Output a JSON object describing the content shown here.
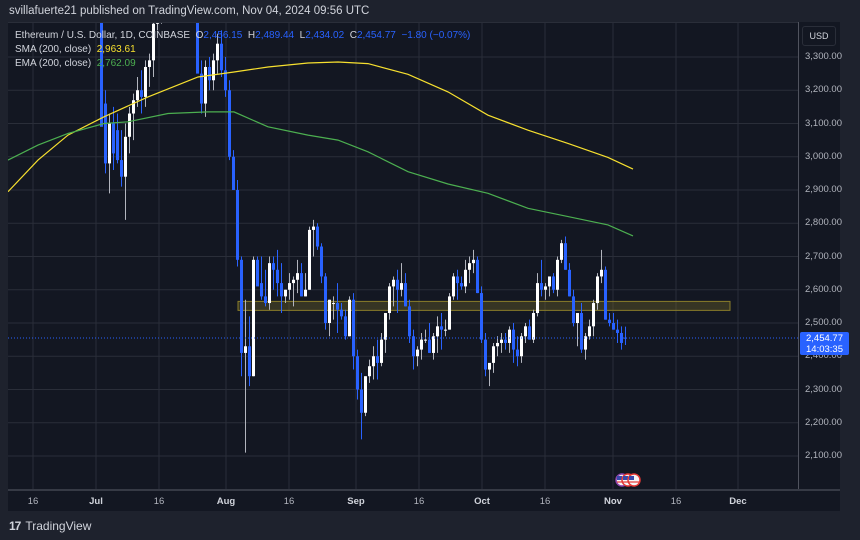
{
  "header": {
    "published": "svillafuerte21 published on TradingView.com, Nov 04, 2024 09:56 UTC"
  },
  "legend": {
    "symbol": "Ethereum / U.S. Dollar, 1D, COINBASE",
    "open_label": "O",
    "open": "2,456.15",
    "high_label": "H",
    "high": "2,489.44",
    "low_label": "L",
    "low": "2,434.02",
    "close_label": "C",
    "close": "2,454.77",
    "change": "−1.80 (−0.07%)",
    "sma_label": "SMA (200, close)",
    "sma_value": "2,963.61",
    "ema_label": "EMA (200, close)",
    "ema_value": "2,762.09"
  },
  "price_axis": {
    "currency": "USD",
    "ticks": [
      "3,300.00",
      "3,200.00",
      "3,100.00",
      "3,000.00",
      "2,900.00",
      "2,800.00",
      "2,700.00",
      "2,600.00",
      "2,500.00",
      "2,400.00",
      "2,300.00",
      "2,200.00",
      "2,100.00"
    ],
    "last_price": "2,454.77",
    "countdown": "14:03:35"
  },
  "time_axis": {
    "ticks": [
      {
        "label": "16",
        "x": 33,
        "bold": false
      },
      {
        "label": "Jul",
        "x": 96,
        "bold": true
      },
      {
        "label": "16",
        "x": 159,
        "bold": false
      },
      {
        "label": "Aug",
        "x": 226,
        "bold": true
      },
      {
        "label": "16",
        "x": 289,
        "bold": false
      },
      {
        "label": "Sep",
        "x": 356,
        "bold": true
      },
      {
        "label": "16",
        "x": 419,
        "bold": false
      },
      {
        "label": "Oct",
        "x": 482,
        "bold": true
      },
      {
        "label": "16",
        "x": 545,
        "bold": false
      },
      {
        "label": "Nov",
        "x": 613,
        "bold": true
      },
      {
        "label": "16",
        "x": 676,
        "bold": false
      },
      {
        "label": "Dec",
        "x": 738,
        "bold": true
      }
    ]
  },
  "footer": {
    "brand": "TradingView",
    "logo": "17"
  },
  "colors": {
    "up": "#ffffff",
    "down": "#2962ff",
    "sma": "#f7e02f",
    "ema": "#4caf50",
    "zone_fill": "rgba(120,110,40,0.35)",
    "zone_border": "#8a7d2a",
    "grid": "#2a2e39"
  },
  "chart_data": {
    "type": "candlestick",
    "title": "Ethereum / U.S. Dollar, 1D, COINBASE",
    "xlabel": "",
    "ylabel": "USD",
    "ylim": [
      2030,
      3370
    ],
    "grid": true,
    "x_ticks": [
      "16",
      "Jul",
      "16",
      "Aug",
      "16",
      "Sep",
      "16",
      "Oct",
      "16",
      "Nov",
      "16",
      "Dec"
    ],
    "y_ticks": [
      2100,
      2200,
      2300,
      2400,
      2500,
      2600,
      2700,
      2800,
      2900,
      3000,
      3100,
      3200,
      3300
    ],
    "last": {
      "open": 2456.15,
      "high": 2489.44,
      "low": 2434.02,
      "close": 2454.77,
      "change": -1.8,
      "change_pct": -0.07
    },
    "indicators": [
      {
        "name": "SMA (200, close)",
        "value": 2963.61,
        "color": "#f7e02f"
      },
      {
        "name": "EMA (200, close)",
        "value": 2762.09,
        "color": "#4caf50"
      }
    ],
    "zone": {
      "from_price": 2538,
      "to_price": 2565,
      "from_date": "Aug 04",
      "to_date": "Nov 30",
      "label": "highlighted support/resistance band"
    },
    "sma_series": [
      [
        0,
        2895
      ],
      [
        30,
        2990
      ],
      [
        60,
        3065
      ],
      [
        96,
        3120
      ],
      [
        140,
        3180
      ],
      [
        190,
        3240
      ],
      [
        226,
        3255
      ],
      [
        260,
        3270
      ],
      [
        300,
        3282
      ],
      [
        330,
        3285
      ],
      [
        360,
        3280
      ],
      [
        400,
        3248
      ],
      [
        440,
        3195
      ],
      [
        480,
        3125
      ],
      [
        520,
        3080
      ],
      [
        560,
        3040
      ],
      [
        600,
        2998
      ],
      [
        625,
        2963
      ]
    ],
    "ema_series": [
      [
        0,
        2990
      ],
      [
        30,
        3035
      ],
      [
        60,
        3070
      ],
      [
        96,
        3100
      ],
      [
        120,
        3105
      ],
      [
        160,
        3130
      ],
      [
        200,
        3135
      ],
      [
        226,
        3135
      ],
      [
        260,
        3090
      ],
      [
        300,
        3065
      ],
      [
        330,
        3050
      ],
      [
        360,
        3015
      ],
      [
        400,
        2955
      ],
      [
        440,
        2918
      ],
      [
        480,
        2890
      ],
      [
        520,
        2845
      ],
      [
        560,
        2820
      ],
      [
        600,
        2795
      ],
      [
        625,
        2762
      ]
    ],
    "candles_note": "OHLC series of ~135 daily candles from mid-June to Nov 04, 2024; approximated as [x_px, open, high, low, close]",
    "candles": [
      [
        100,
        3480,
        3520,
        3150,
        3090
      ],
      [
        104,
        3160,
        3200,
        2950,
        2980
      ],
      [
        108,
        2980,
        3130,
        2890,
        3100
      ],
      [
        112,
        3100,
        3150,
        2960,
        3010
      ],
      [
        116,
        3080,
        3130,
        2980,
        2990
      ],
      [
        120,
        2990,
        3080,
        2910,
        2940
      ],
      [
        124,
        2940,
        3100,
        2810,
        3060
      ],
      [
        128,
        3060,
        3150,
        3010,
        3130
      ],
      [
        132,
        3130,
        3190,
        3050,
        3170
      ],
      [
        136,
        3170,
        3240,
        3150,
        3200
      ],
      [
        140,
        3200,
        3260,
        3130,
        3180
      ],
      [
        144,
        3180,
        3290,
        3150,
        3270
      ],
      [
        148,
        3270,
        3310,
        3210,
        3290
      ],
      [
        152,
        3290,
        3420,
        3240,
        3400
      ],
      [
        156,
        3400,
        3470,
        3380,
        3440
      ],
      [
        160,
        3440,
        3520,
        3400,
        3500
      ],
      [
        196,
        3450,
        3490,
        3260,
        3250
      ],
      [
        200,
        3250,
        3290,
        3130,
        3160
      ],
      [
        204,
        3160,
        3290,
        3120,
        3270
      ],
      [
        208,
        3270,
        3300,
        3200,
        3230
      ],
      [
        212,
        3230,
        3310,
        3200,
        3290
      ],
      [
        216,
        3290,
        3370,
        3250,
        3340
      ],
      [
        220,
        3340,
        3380,
        3240,
        3260
      ],
      [
        224,
        3260,
        3300,
        3180,
        3200
      ],
      [
        228,
        3200,
        3230,
        2990,
        3000
      ],
      [
        232,
        3000,
        3020,
        2910,
        2900
      ],
      [
        236,
        2900,
        2930,
        2670,
        2690
      ],
      [
        240,
        2690,
        2700,
        2340,
        2410
      ],
      [
        244,
        2410,
        2570,
        2110,
        2430
      ],
      [
        248,
        2430,
        2520,
        2310,
        2340
      ],
      [
        252,
        2340,
        2700,
        2340,
        2690
      ],
      [
        256,
        2690,
        2700,
        2620,
        2610
      ],
      [
        260,
        2620,
        2700,
        2570,
        2580
      ],
      [
        264,
        2580,
        2660,
        2550,
        2560
      ],
      [
        268,
        2560,
        2700,
        2540,
        2680
      ],
      [
        272,
        2680,
        2700,
        2600,
        2660
      ],
      [
        276,
        2660,
        2720,
        2580,
        2620
      ],
      [
        280,
        2620,
        2680,
        2530,
        2580
      ],
      [
        284,
        2580,
        2600,
        2560,
        2600
      ],
      [
        288,
        2600,
        2650,
        2570,
        2620
      ],
      [
        292,
        2620,
        2640,
        2550,
        2630
      ],
      [
        296,
        2630,
        2690,
        2590,
        2650
      ],
      [
        300,
        2650,
        2680,
        2580,
        2580
      ],
      [
        304,
        2580,
        2650,
        2580,
        2600
      ],
      [
        308,
        2600,
        2790,
        2600,
        2780
      ],
      [
        312,
        2780,
        2810,
        2700,
        2790
      ],
      [
        316,
        2790,
        2800,
        2720,
        2730
      ],
      [
        320,
        2730,
        2740,
        2620,
        2640
      ],
      [
        324,
        2640,
        2650,
        2480,
        2500
      ],
      [
        328,
        2500,
        2570,
        2460,
        2570
      ],
      [
        332,
        2560,
        2580,
        2510,
        2560
      ],
      [
        336,
        2560,
        2620,
        2470,
        2540
      ],
      [
        340,
        2540,
        2560,
        2510,
        2520
      ],
      [
        344,
        2520,
        2540,
        2450,
        2460
      ],
      [
        348,
        2460,
        2580,
        2460,
        2570
      ],
      [
        352,
        2570,
        2590,
        2360,
        2400
      ],
      [
        356,
        2400,
        2420,
        2270,
        2300
      ],
      [
        360,
        2300,
        2350,
        2150,
        2230
      ],
      [
        364,
        2230,
        2340,
        2220,
        2340
      ],
      [
        368,
        2340,
        2390,
        2320,
        2370
      ],
      [
        372,
        2370,
        2430,
        2330,
        2400
      ],
      [
        376,
        2400,
        2450,
        2330,
        2380
      ],
      [
        380,
        2380,
        2470,
        2370,
        2450
      ],
      [
        384,
        2450,
        2530,
        2410,
        2530
      ],
      [
        388,
        2530,
        2620,
        2510,
        2610
      ],
      [
        392,
        2610,
        2640,
        2550,
        2630
      ],
      [
        396,
        2630,
        2660,
        2530,
        2600
      ],
      [
        400,
        2600,
        2680,
        2580,
        2620
      ],
      [
        404,
        2620,
        2650,
        2550,
        2550
      ],
      [
        408,
        2550,
        2570,
        2440,
        2460
      ],
      [
        412,
        2460,
        2480,
        2360,
        2400
      ],
      [
        416,
        2400,
        2430,
        2370,
        2420
      ],
      [
        420,
        2420,
        2470,
        2390,
        2450
      ],
      [
        424,
        2450,
        2480,
        2440,
        2450
      ],
      [
        428,
        2450,
        2500,
        2410,
        2410
      ],
      [
        432,
        2410,
        2470,
        2390,
        2460
      ],
      [
        436,
        2460,
        2520,
        2410,
        2490
      ],
      [
        440,
        2490,
        2530,
        2420,
        2480
      ],
      [
        444,
        2480,
        2510,
        2460,
        2480
      ],
      [
        448,
        2480,
        2590,
        2480,
        2580
      ],
      [
        452,
        2580,
        2650,
        2570,
        2640
      ],
      [
        456,
        2640,
        2660,
        2570,
        2620
      ],
      [
        460,
        2620,
        2640,
        2600,
        2610
      ],
      [
        464,
        2610,
        2690,
        2590,
        2660
      ],
      [
        468,
        2660,
        2700,
        2620,
        2680
      ],
      [
        472,
        2680,
        2720,
        2650,
        2690
      ],
      [
        476,
        2690,
        2700,
        2590,
        2590
      ],
      [
        480,
        2590,
        2610,
        2440,
        2450
      ],
      [
        484,
        2450,
        2470,
        2340,
        2360
      ],
      [
        488,
        2360,
        2370,
        2310,
        2380
      ],
      [
        492,
        2380,
        2440,
        2350,
        2430
      ],
      [
        496,
        2430,
        2460,
        2400,
        2440
      ],
      [
        500,
        2440,
        2470,
        2410,
        2450
      ],
      [
        504,
        2450,
        2470,
        2420,
        2440
      ],
      [
        508,
        2440,
        2490,
        2410,
        2480
      ],
      [
        512,
        2480,
        2500,
        2380,
        2420
      ],
      [
        516,
        2420,
        2460,
        2370,
        2400
      ],
      [
        520,
        2400,
        2470,
        2380,
        2460
      ],
      [
        524,
        2460,
        2500,
        2440,
        2490
      ],
      [
        528,
        2490,
        2510,
        2450,
        2450
      ],
      [
        532,
        2450,
        2540,
        2440,
        2530
      ],
      [
        536,
        2530,
        2650,
        2520,
        2620
      ],
      [
        540,
        2620,
        2690,
        2580,
        2600
      ],
      [
        544,
        2600,
        2620,
        2570,
        2610
      ],
      [
        548,
        2610,
        2640,
        2580,
        2640
      ],
      [
        552,
        2640,
        2650,
        2590,
        2600
      ],
      [
        556,
        2600,
        2700,
        2580,
        2690
      ],
      [
        560,
        2690,
        2750,
        2680,
        2740
      ],
      [
        564,
        2740,
        2760,
        2660,
        2660
      ],
      [
        568,
        2660,
        2680,
        2580,
        2580
      ],
      [
        572,
        2580,
        2600,
        2490,
        2500
      ],
      [
        576,
        2500,
        2520,
        2430,
        2530
      ],
      [
        580,
        2530,
        2560,
        2410,
        2420
      ],
      [
        584,
        2420,
        2470,
        2390,
        2460
      ],
      [
        588,
        2460,
        2510,
        2450,
        2490
      ],
      [
        592,
        2490,
        2570,
        2460,
        2560
      ],
      [
        596,
        2560,
        2650,
        2540,
        2640
      ],
      [
        600,
        2640,
        2720,
        2620,
        2660
      ],
      [
        604,
        2660,
        2670,
        2510,
        2510
      ],
      [
        608,
        2510,
        2530,
        2490,
        2500
      ],
      [
        612,
        2500,
        2530,
        2480,
        2480
      ],
      [
        616,
        2480,
        2510,
        2440,
        2470
      ],
      [
        620,
        2470,
        2490,
        2420,
        2440
      ],
      [
        624,
        2456,
        2489,
        2434,
        2455
      ]
    ]
  }
}
